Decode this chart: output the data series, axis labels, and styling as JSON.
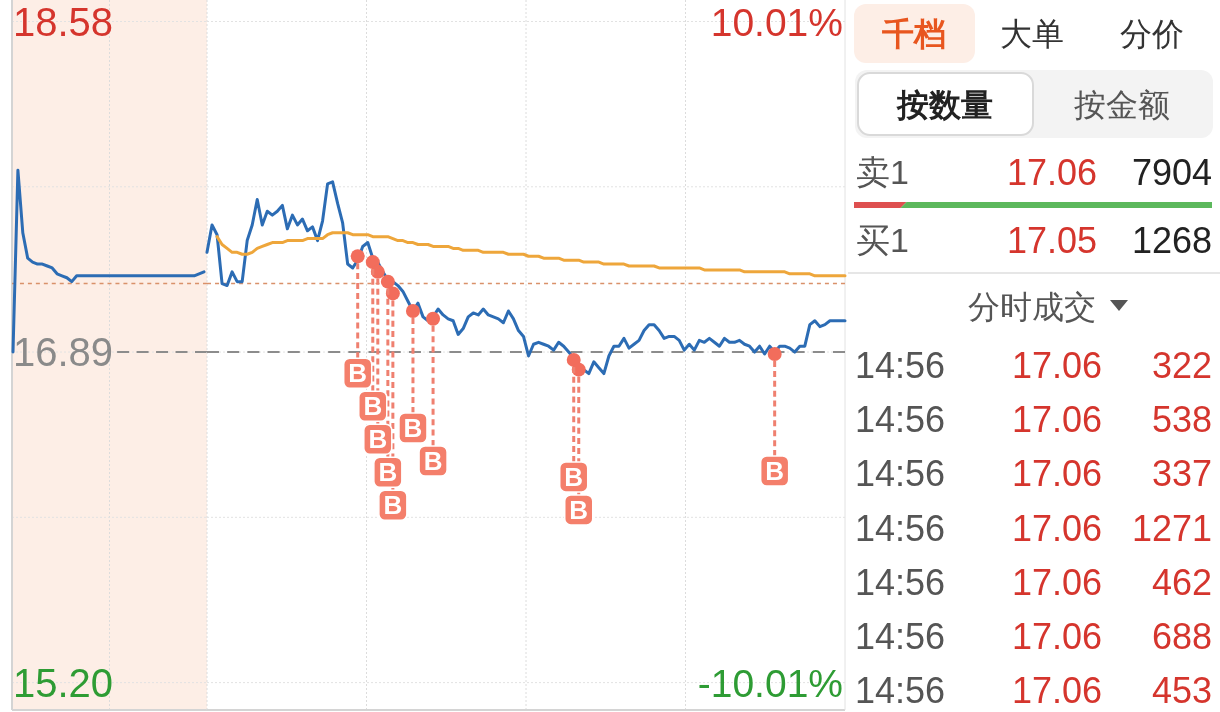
{
  "chart_data": [
    {
      "type": "line",
      "grid": true,
      "tick_labels": "y",
      "line_style": "solid",
      "categories": [
        null,
        null,
        null,
        null,
        null,
        null,
        null,
        null,
        null,
        null,
        null,
        null,
        null,
        null,
        null,
        null,
        null,
        null,
        null,
        null,
        null,
        null,
        null,
        null,
        null,
        null,
        null,
        null,
        null,
        null,
        null,
        null,
        null,
        null,
        null,
        null,
        null,
        null,
        null,
        null
      ],
      "ylim": [
        15.06,
        18.69
      ],
      "yticks": [
        {
          "value": 15.2,
          "label": "15.20"
        },
        {
          "value": 16.045,
          "label": null
        },
        16.89,
        {
          "value": 17.735,
          "label": null
        },
        18.58
      ],
      "bands": [
        {
          "axis": "y",
          "from": 15.06,
          "to": 18.69,
          "color": "#fdeee6"
        }
      ],
      "ref_lines": [
        {
          "axis": "y",
          "value": 16.89,
          "color": "#8c8c8c",
          "line_style": "dashed"
        },
        {
          "axis": "y",
          "value": 17.24,
          "color": "#d9916a",
          "line_style": "dotted"
        }
      ],
      "series": [
        {
          "color": "#2c6cb4",
          "values": [
            16.89,
            17.82,
            17.5,
            17.37,
            17.35,
            17.34,
            17.34,
            17.33,
            17.32,
            17.29,
            17.28,
            17.27,
            17.25,
            17.28,
            17.28,
            17.28,
            17.28,
            17.28,
            17.28,
            17.28,
            17.28,
            17.28,
            17.28,
            17.28,
            17.28,
            17.28,
            17.28,
            17.28,
            17.28,
            17.28,
            17.28,
            17.28,
            17.28,
            17.28,
            17.28,
            17.28,
            17.28,
            17.28,
            17.29,
            17.3
          ]
        }
      ]
    },
    {
      "type": "line",
      "grid": true,
      "tick_labels": false,
      "line_style": "solid",
      "categories": [
        null,
        null,
        null,
        null,
        null,
        null,
        null,
        null,
        null,
        null,
        null,
        null,
        null,
        null,
        null,
        null,
        null,
        null,
        null,
        null,
        null,
        null,
        null,
        null,
        null,
        null,
        null,
        null,
        null,
        null,
        null,
        null,
        null,
        null,
        null,
        null,
        null,
        null,
        null,
        null,
        null,
        null,
        null,
        null,
        null,
        null,
        null,
        null,
        null,
        null,
        null,
        null,
        null,
        null,
        null,
        null,
        null,
        null,
        null,
        null,
        null,
        null,
        null,
        null,
        null,
        null,
        null,
        null,
        null,
        null,
        null,
        null,
        null,
        null,
        null,
        null,
        null,
        null,
        null,
        null,
        null,
        null,
        null,
        null,
        null,
        null,
        null,
        null,
        null,
        null,
        null,
        null,
        null,
        null,
        null,
        null,
        null,
        null,
        null,
        null,
        null,
        null,
        null,
        null,
        null,
        null,
        null,
        null,
        null,
        null,
        null,
        null,
        null,
        null,
        null,
        null,
        null,
        null,
        null,
        null,
        null,
        null,
        null,
        null,
        null,
        null,
        null,
        null
      ],
      "ylim": [
        15.06,
        18.69
      ],
      "yticks": [
        15.2,
        {
          "value": 16.045,
          "label": null
        },
        16.89,
        {
          "value": 17.735,
          "label": null
        },
        18.58
      ],
      "y2lim": [
        -10.84,
        10.66
      ],
      "y2ticks": [
        {
          "value": -10.01,
          "label": "-10.01%"
        },
        {
          "value": 10.01,
          "label": "10.01%"
        }
      ],
      "ref_lines": [
        {
          "axis": "y",
          "value": 16.89,
          "color": "#8c8c8c",
          "line_style": "dashed"
        },
        {
          "axis": "y",
          "value": 17.24,
          "color": "#d9916a",
          "line_style": "dotted"
        }
      ],
      "annotations": [
        "B",
        "B",
        "B",
        "B",
        "B",
        "B",
        "B",
        "B",
        "B",
        "B"
      ],
      "series": [
        {
          "color": "#2c6cb4",
          "values": [
            17.4,
            17.54,
            17.49,
            17.24,
            17.23,
            17.3,
            17.25,
            17.25,
            17.46,
            17.54,
            17.67,
            17.54,
            17.61,
            17.59,
            17.61,
            17.64,
            17.52,
            17.59,
            17.54,
            17.57,
            17.51,
            17.53,
            17.46,
            17.56,
            17.75,
            17.76,
            17.65,
            17.55,
            17.34,
            17.32,
            17.36,
            17.43,
            17.45,
            17.37,
            17.35,
            17.3,
            17.26,
            17.25,
            17.23,
            17.2,
            17.15,
            17.1,
            17.14,
            17.07,
            17.05,
            17.07,
            17.11,
            17.08,
            17.06,
            17.05,
            16.98,
            17.01,
            17.07,
            17.09,
            17.08,
            17.11,
            17.08,
            17.07,
            17.06,
            17.04,
            17.1,
            17.06,
            17.0,
            16.97,
            16.87,
            16.93,
            16.94,
            16.93,
            16.92,
            16.9,
            16.94,
            16.92,
            16.89,
            16.86,
            16.83,
            16.8,
            16.78,
            16.84,
            16.81,
            16.78,
            16.87,
            16.92,
            16.92,
            16.96,
            16.91,
            16.93,
            16.95,
            17.0,
            17.03,
            17.03,
            17.0,
            16.96,
            16.97,
            16.97,
            16.95,
            16.9,
            16.93,
            16.9,
            16.95,
            16.94,
            16.96,
            16.94,
            16.92,
            16.96,
            16.94,
            16.94,
            16.95,
            16.93,
            16.92,
            16.89,
            16.92,
            16.88,
            16.92,
            16.89,
            16.92,
            16.92,
            16.91,
            16.89,
            16.92,
            16.92,
            17.03,
            17.05,
            17.02,
            17.03,
            17.05,
            17.05,
            17.05,
            17.05
          ]
        },
        {
          "color": "#eea63b",
          "values": [
            null,
            null,
            17.48,
            17.44,
            17.42,
            17.4,
            17.4,
            17.39,
            17.39,
            17.4,
            17.42,
            17.43,
            17.44,
            17.45,
            17.45,
            17.45,
            17.46,
            17.46,
            17.46,
            17.46,
            17.47,
            17.47,
            17.47,
            17.47,
            17.49,
            17.5,
            17.5,
            17.5,
            17.5,
            17.49,
            17.49,
            17.49,
            17.49,
            17.48,
            17.48,
            17.48,
            17.48,
            17.47,
            17.46,
            17.46,
            17.45,
            17.45,
            17.44,
            17.44,
            17.44,
            17.43,
            17.43,
            17.43,
            17.43,
            17.42,
            17.42,
            17.41,
            17.41,
            17.41,
            17.41,
            17.4,
            17.4,
            17.4,
            17.4,
            17.4,
            17.39,
            17.39,
            17.39,
            17.39,
            17.38,
            17.38,
            17.38,
            17.37,
            17.37,
            17.37,
            17.37,
            17.36,
            17.36,
            17.36,
            17.36,
            17.35,
            17.35,
            17.35,
            17.35,
            17.34,
            17.34,
            17.34,
            17.34,
            17.34,
            17.33,
            17.33,
            17.33,
            17.33,
            17.33,
            17.33,
            17.32,
            17.32,
            17.32,
            17.32,
            17.32,
            17.32,
            17.32,
            17.32,
            17.32,
            17.31,
            17.31,
            17.31,
            17.31,
            17.31,
            17.31,
            17.31,
            17.31,
            17.3,
            17.3,
            17.3,
            17.3,
            17.3,
            17.3,
            17.3,
            17.3,
            17.3,
            17.29,
            17.29,
            17.29,
            17.29,
            17.29,
            17.28,
            17.28,
            17.28,
            17.28,
            17.28,
            17.28,
            17.28
          ]
        },
        {
          "type": "scatter",
          "color": "#f26d5c",
          "marker": "circle",
          "values": [
            null,
            null,
            null,
            null,
            null,
            null,
            null,
            null,
            null,
            null,
            null,
            null,
            null,
            null,
            null,
            null,
            null,
            null,
            null,
            null,
            null,
            null,
            null,
            null,
            null,
            null,
            null,
            null,
            null,
            null,
            17.38,
            null,
            null,
            17.35,
            17.3,
            null,
            17.25,
            17.19,
            null,
            null,
            null,
            17.1,
            null,
            null,
            null,
            17.06,
            null,
            null,
            null,
            null,
            null,
            null,
            null,
            null,
            null,
            null,
            null,
            null,
            null,
            null,
            null,
            null,
            null,
            null,
            null,
            null,
            null,
            null,
            null,
            null,
            null,
            null,
            null,
            16.85,
            16.8,
            null,
            null,
            null,
            null,
            null,
            null,
            null,
            null,
            null,
            null,
            null,
            null,
            null,
            null,
            null,
            null,
            null,
            null,
            null,
            null,
            null,
            null,
            null,
            null,
            null,
            null,
            null,
            null,
            null,
            null,
            null,
            null,
            null,
            null,
            null,
            null,
            null,
            null,
            16.88,
            null,
            null,
            null,
            null,
            null,
            null,
            null,
            null,
            null,
            null,
            null,
            null,
            null,
            null
          ]
        }
      ]
    },
    {
      "type": "other",
      "annotations": [
        "千档",
        "大单",
        "分价",
        "按数量",
        "按金额",
        "卖1",
        "17.06",
        "7904",
        "买1",
        "17.05",
        "1268",
        "分时成交",
        "14:56",
        "17.06",
        "322",
        "14:56",
        "17.06",
        "538",
        "14:56",
        "17.06",
        "337",
        "14:56",
        "17.06",
        "1271",
        "14:56",
        "17.06",
        "462",
        "14:56",
        "17.06",
        "688",
        "14:56",
        "17.06",
        "453"
      ]
    }
  ]
}
